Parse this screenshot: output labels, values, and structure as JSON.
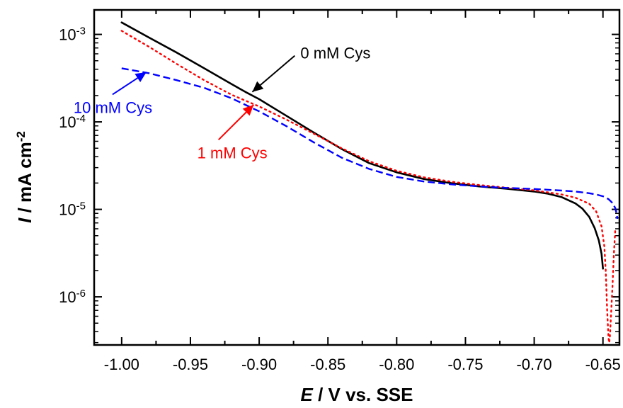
{
  "chart_data": {
    "type": "line",
    "title": "",
    "xlabel": {
      "italic": "E",
      "rest": " / V vs. SSE"
    },
    "ylabel": {
      "italic": "I",
      "rest": " / mA cm",
      "sup": "-2"
    },
    "xlim": [
      -1.02,
      -0.638
    ],
    "ylim_log10": [
      -6.55,
      -2.72
    ],
    "log_y": true,
    "grid": false,
    "x_ticks": [
      {
        "value": -1.0,
        "label": "-1.00"
      },
      {
        "value": -0.95,
        "label": "-0.95"
      },
      {
        "value": -0.9,
        "label": "-0.90"
      },
      {
        "value": -0.85,
        "label": "-0.85"
      },
      {
        "value": -0.8,
        "label": "-0.80"
      },
      {
        "value": -0.75,
        "label": "-0.75"
      },
      {
        "value": -0.7,
        "label": "-0.70"
      },
      {
        "value": -0.65,
        "label": "-0.65"
      }
    ],
    "y_ticks": [
      {
        "value": 0.001,
        "base": "10",
        "exp": "-3"
      },
      {
        "value": 0.0001,
        "base": "10",
        "exp": "-4"
      },
      {
        "value": 1e-05,
        "base": "10",
        "exp": "-5"
      },
      {
        "value": 1e-06,
        "base": "10",
        "exp": "-6"
      }
    ],
    "series": [
      {
        "name": "0 mM Cys",
        "color": "#000000",
        "dash": "solid",
        "x": [
          -1.0,
          -0.98,
          -0.96,
          -0.94,
          -0.92,
          -0.91,
          -0.9,
          -0.88,
          -0.86,
          -0.84,
          -0.82,
          -0.8,
          -0.78,
          -0.76,
          -0.74,
          -0.72,
          -0.7,
          -0.69,
          -0.68,
          -0.67,
          -0.665,
          -0.66,
          -0.656,
          -0.653,
          -0.651,
          -0.65
        ],
        "y": [
          0.00137,
          0.00092,
          0.00062,
          0.00041,
          0.00027,
          0.00022,
          0.000182,
          0.000117,
          7.5e-05,
          4.9e-05,
          3.38e-05,
          2.65e-05,
          2.22e-05,
          1.99e-05,
          1.83e-05,
          1.72e-05,
          1.6e-05,
          1.51e-05,
          1.38e-05,
          1.17e-05,
          1.02e-05,
          8.2e-06,
          6.1e-06,
          4.4e-06,
          3.1e-06,
          2.1e-06
        ]
      },
      {
        "name": "1 mM Cys",
        "color": "#ff0000",
        "dash": "dotted",
        "x": [
          -1.0,
          -0.98,
          -0.96,
          -0.94,
          -0.92,
          -0.91,
          -0.9,
          -0.88,
          -0.86,
          -0.84,
          -0.82,
          -0.8,
          -0.78,
          -0.76,
          -0.74,
          -0.72,
          -0.7,
          -0.68,
          -0.67,
          -0.66,
          -0.655,
          -0.651,
          -0.649,
          -0.648,
          -0.647,
          -0.646,
          -0.6455,
          -0.645,
          -0.644,
          -0.643,
          -0.642,
          -0.641
        ],
        "y": [
          0.0011,
          0.00072,
          0.00046,
          0.0003,
          0.000204,
          0.000175,
          0.00015,
          0.000106,
          7.3e-05,
          5e-05,
          3.55e-05,
          2.76e-05,
          2.32e-05,
          2.07e-05,
          1.9e-05,
          1.77e-05,
          1.65e-05,
          1.48e-05,
          1.36e-05,
          1.16e-05,
          9.5e-06,
          6.4e-06,
          3.8e-06,
          2e-06,
          7.4e-07,
          3.4e-07,
          3e-07,
          3.4e-07,
          6.7e-07,
          1.4e-06,
          3.2e-06,
          6e-06
        ]
      },
      {
        "name": "10 mM Cys",
        "color": "#0000ff",
        "dash": "dashed",
        "x": [
          -1.0,
          -0.98,
          -0.96,
          -0.94,
          -0.92,
          -0.9,
          -0.88,
          -0.86,
          -0.84,
          -0.82,
          -0.8,
          -0.78,
          -0.76,
          -0.74,
          -0.72,
          -0.7,
          -0.68,
          -0.67,
          -0.66,
          -0.655,
          -0.65,
          -0.646,
          -0.643,
          -0.641,
          -0.64,
          -0.6395
        ],
        "y": [
          0.00041,
          0.00036,
          0.0003,
          0.000245,
          0.000186,
          0.000132,
          8.9e-05,
          5.8e-05,
          3.9e-05,
          2.9e-05,
          2.35e-05,
          2.08e-05,
          1.93e-05,
          1.83e-05,
          1.76e-05,
          1.71e-05,
          1.64e-05,
          1.6e-05,
          1.53e-05,
          1.48e-05,
          1.41e-05,
          1.31e-05,
          1.18e-05,
          1.03e-05,
          8.8e-06,
          7.8e-06
        ]
      }
    ],
    "annotations": [
      {
        "text": "0 mM Cys",
        "color": "#000000",
        "x": -0.87,
        "y": 0.00053,
        "arrow_to": [
          -0.905,
          0.00022
        ]
      },
      {
        "text": "1 mM Cys",
        "color": "#ff0000",
        "x": -0.945,
        "y": 3.85e-05,
        "arrow_to": [
          -0.904,
          0.000157
        ]
      },
      {
        "text": "10 mM Cys",
        "color": "#0000ff",
        "x": -1.035,
        "y": 0.0001265,
        "arrow_to": [
          -0.982,
          0.00037
        ]
      }
    ]
  }
}
